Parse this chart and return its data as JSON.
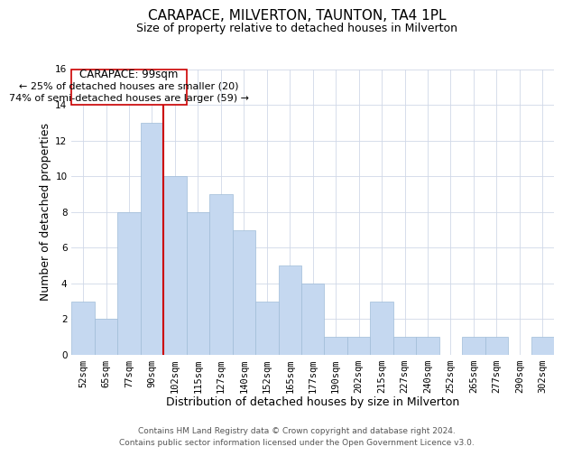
{
  "title": "CARAPACE, MILVERTON, TAUNTON, TA4 1PL",
  "subtitle": "Size of property relative to detached houses in Milverton",
  "xlabel": "Distribution of detached houses by size in Milverton",
  "ylabel": "Number of detached properties",
  "bar_labels": [
    "52sqm",
    "65sqm",
    "77sqm",
    "90sqm",
    "102sqm",
    "115sqm",
    "127sqm",
    "140sqm",
    "152sqm",
    "165sqm",
    "177sqm",
    "190sqm",
    "202sqm",
    "215sqm",
    "227sqm",
    "240sqm",
    "252sqm",
    "265sqm",
    "277sqm",
    "290sqm",
    "302sqm"
  ],
  "bar_values": [
    3,
    2,
    8,
    13,
    10,
    8,
    9,
    7,
    3,
    5,
    4,
    1,
    1,
    3,
    1,
    1,
    0,
    1,
    1,
    0,
    1
  ],
  "bar_color": "#c5d8f0",
  "bar_edge_color": "#a0bcd8",
  "vline_color": "#cc0000",
  "vline_x_index": 3.5,
  "ylim": [
    0,
    16
  ],
  "yticks": [
    0,
    2,
    4,
    6,
    8,
    10,
    12,
    14,
    16
  ],
  "annotation_title": "CARAPACE: 99sqm",
  "annotation_line1": "← 25% of detached houses are smaller (20)",
  "annotation_line2": "74% of semi-detached houses are larger (59) →",
  "footer_line1": "Contains HM Land Registry data © Crown copyright and database right 2024.",
  "footer_line2": "Contains public sector information licensed under the Open Government Licence v3.0.",
  "background_color": "#ffffff",
  "grid_color": "#d0d8e8",
  "title_fontsize": 11,
  "subtitle_fontsize": 9,
  "xlabel_fontsize": 9,
  "ylabel_fontsize": 9,
  "tick_fontsize": 7.5,
  "footer_fontsize": 6.5,
  "ann_fontsize_title": 8.5,
  "ann_fontsize_text": 8
}
